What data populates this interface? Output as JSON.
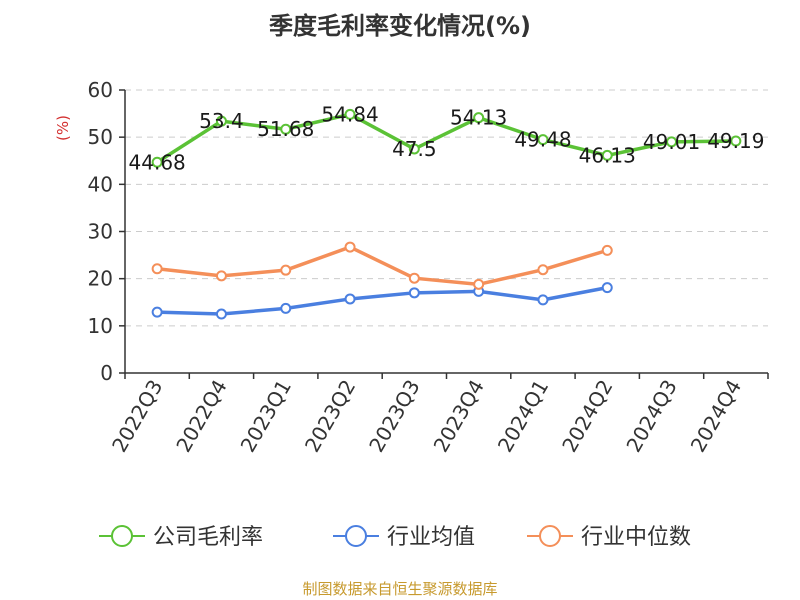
{
  "chart_data": {
    "type": "line",
    "title": "季度毛利率变化情况(%)",
    "ylabel": "(%)",
    "xlabel": "",
    "ylim": [
      0,
      60
    ],
    "yticks": [
      0,
      10,
      20,
      30,
      40,
      50,
      60
    ],
    "grid": true,
    "legend_position": "bottom",
    "categories": [
      "2022Q3",
      "2022Q4",
      "2023Q1",
      "2023Q2",
      "2023Q3",
      "2023Q4",
      "2024Q1",
      "2024Q2",
      "2024Q3",
      "2024Q4"
    ],
    "series": [
      {
        "name": "公司毛利率",
        "color": "#5bc236",
        "values": [
          44.68,
          53.4,
          51.68,
          54.84,
          47.5,
          54.13,
          49.48,
          46.13,
          49.01,
          49.19
        ],
        "labels": [
          "44.68",
          "53.4",
          "51.68",
          "54.84",
          "47.5",
          "54.13",
          "49.48",
          "46.13",
          "49.01",
          "49.19"
        ]
      },
      {
        "name": "行业均值",
        "color": "#4a7fe0",
        "values": [
          12.9,
          12.5,
          13.7,
          15.7,
          17.0,
          17.3,
          15.5,
          18.1,
          null,
          null
        ]
      },
      {
        "name": "行业中位数",
        "color": "#f48f59",
        "values": [
          22.1,
          20.6,
          21.8,
          26.7,
          20.1,
          18.8,
          21.9,
          26.0,
          null,
          null
        ]
      }
    ]
  },
  "colors": {
    "axis": "#333333",
    "grid": "#cccccc",
    "unit_label": "#d32f2f",
    "source_text": "#c79a2e"
  },
  "source_text": "制图数据来自恒生聚源数据库"
}
